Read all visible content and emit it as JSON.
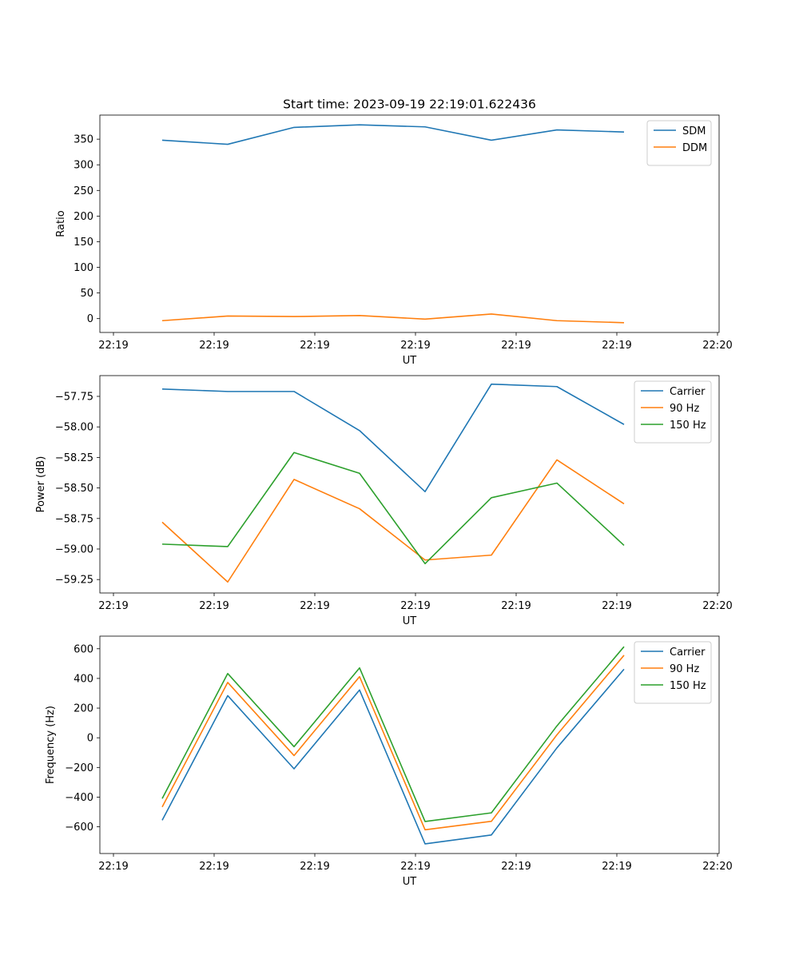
{
  "chart_data": [
    {
      "type": "line",
      "title": "Start time: 2023-09-19 22:19:01.622436",
      "xlabel": "UT",
      "ylabel": "Ratio",
      "x_tick_labels": [
        "22:19",
        "22:19",
        "22:19",
        "22:19",
        "22:19",
        "22:19",
        "22:20"
      ],
      "y_ticks": [
        0,
        50,
        100,
        150,
        200,
        250,
        300,
        350
      ],
      "y_tick_labels": [
        "0",
        "50",
        "100",
        "150",
        "200",
        "250",
        "300",
        "350"
      ],
      "ylim": [
        -27,
        397
      ],
      "legend": "top-right",
      "series": [
        {
          "name": "SDM",
          "color": "#1f77b4",
          "values": [
            348,
            340,
            373,
            378,
            374,
            348,
            368,
            364
          ]
        },
        {
          "name": "DDM",
          "color": "#ff7f0e",
          "values": [
            -4,
            5,
            4,
            6,
            -1,
            9,
            -4,
            -8
          ]
        }
      ]
    },
    {
      "type": "line",
      "title": "",
      "xlabel": "UT",
      "ylabel": "Power (dB)",
      "x_tick_labels": [
        "22:19",
        "22:19",
        "22:19",
        "22:19",
        "22:19",
        "22:19",
        "22:20"
      ],
      "y_ticks": [
        -57.75,
        -58.0,
        -58.25,
        -58.5,
        -58.75,
        -59.0,
        -59.25
      ],
      "y_tick_labels": [
        "−57.75",
        "−58.00",
        "−58.25",
        "−58.50",
        "−58.75",
        "−59.00",
        "−59.25"
      ],
      "ylim": [
        -59.36,
        -57.58
      ],
      "legend": "top-right",
      "series": [
        {
          "name": "Carrier",
          "color": "#1f77b4",
          "values": [
            -57.69,
            -57.71,
            -57.71,
            -58.03,
            -58.53,
            -57.65,
            -57.67,
            -57.98
          ]
        },
        {
          "name": "90 Hz",
          "color": "#ff7f0e",
          "values": [
            -58.78,
            -59.27,
            -58.43,
            -58.67,
            -59.09,
            -59.05,
            -58.27,
            -58.63
          ]
        },
        {
          "name": "150 Hz",
          "color": "#2ca02c",
          "values": [
            -58.96,
            -58.98,
            -58.21,
            -58.38,
            -59.12,
            -58.58,
            -58.46,
            -58.97
          ]
        }
      ]
    },
    {
      "type": "line",
      "title": "",
      "xlabel": "UT",
      "ylabel": "Frequency (Hz)",
      "x_tick_labels": [
        "22:19",
        "22:19",
        "22:19",
        "22:19",
        "22:19",
        "22:19",
        "22:20"
      ],
      "y_ticks": [
        600,
        400,
        200,
        0,
        -200,
        -400,
        -600
      ],
      "y_tick_labels": [
        "600",
        "400",
        "200",
        "0",
        "−200",
        "−400",
        "−600"
      ],
      "ylim": [
        -780,
        685
      ],
      "legend": "top-right",
      "series": [
        {
          "name": "Carrier",
          "color": "#1f77b4",
          "values": [
            -556,
            284,
            -209,
            322,
            -715,
            -655,
            -68,
            462
          ]
        },
        {
          "name": "90 Hz",
          "color": "#ff7f0e",
          "values": [
            -466,
            373,
            -120,
            412,
            -620,
            -563,
            20,
            556
          ]
        },
        {
          "name": "150 Hz",
          "color": "#2ca02c",
          "values": [
            -410,
            433,
            -60,
            471,
            -564,
            -506,
            80,
            614
          ]
        }
      ]
    }
  ]
}
